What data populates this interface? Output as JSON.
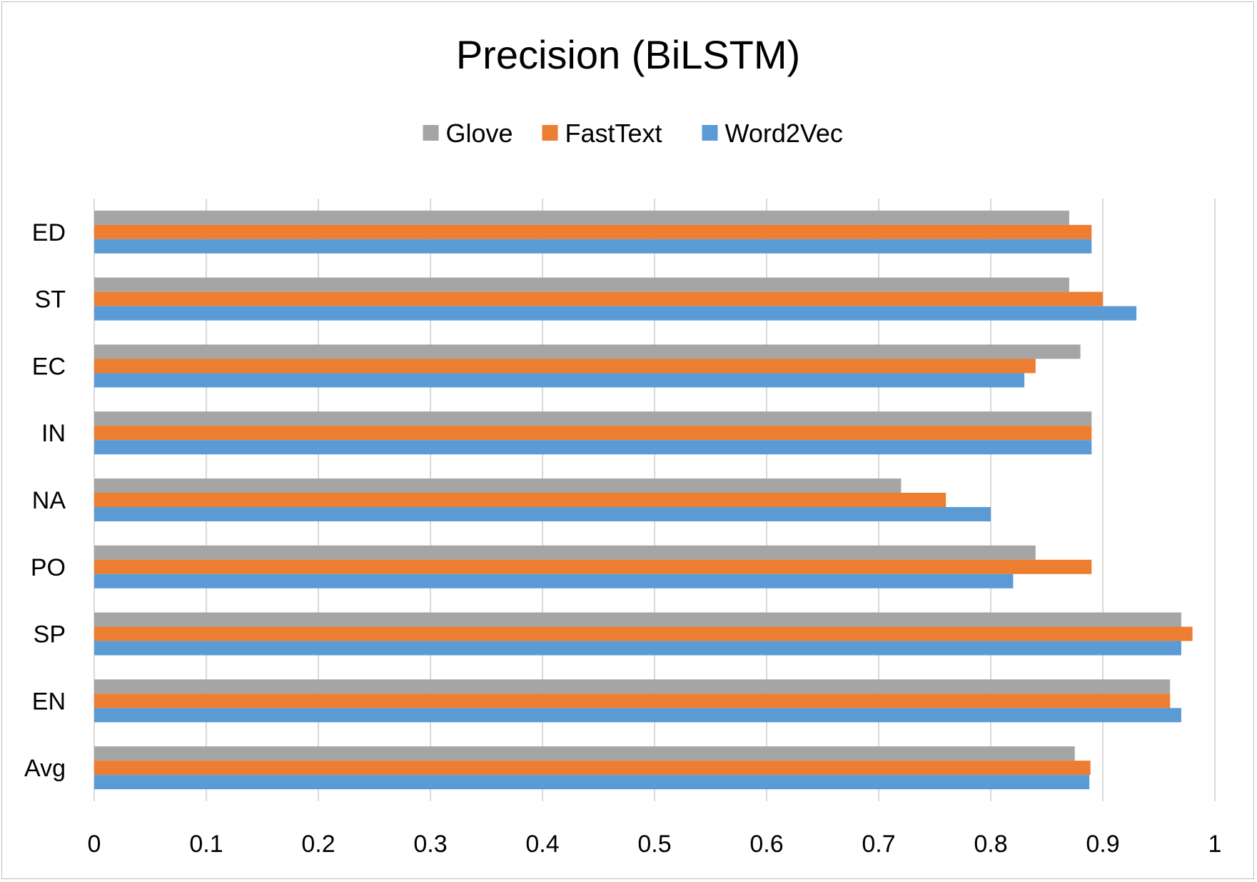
{
  "chart_data": {
    "type": "bar",
    "orientation": "horizontal",
    "title": "Precision (BiLSTM)",
    "xlabel": "",
    "ylabel": "",
    "xlim": [
      0,
      1
    ],
    "x_ticks": [
      "0",
      "0.1",
      "0.2",
      "0.3",
      "0.4",
      "0.5",
      "0.6",
      "0.7",
      "0.8",
      "0.9",
      "1"
    ],
    "grid": "vertical",
    "legend_position": "top",
    "categories": [
      "ED",
      "ST",
      "EC",
      "IN",
      "NA",
      "PO",
      "SP",
      "EN",
      "Avg"
    ],
    "series": [
      {
        "name": "Glove",
        "color": "#a5a5a5",
        "values": [
          0.87,
          0.87,
          0.88,
          0.89,
          0.72,
          0.84,
          0.97,
          0.96,
          0.875
        ]
      },
      {
        "name": "FastText",
        "color": "#ed7d31",
        "values": [
          0.89,
          0.9,
          0.84,
          0.89,
          0.76,
          0.89,
          0.98,
          0.96,
          0.889
        ]
      },
      {
        "name": "Word2Vec",
        "color": "#5b9bd5",
        "values": [
          0.89,
          0.93,
          0.83,
          0.89,
          0.8,
          0.82,
          0.97,
          0.97,
          0.888
        ]
      }
    ]
  }
}
